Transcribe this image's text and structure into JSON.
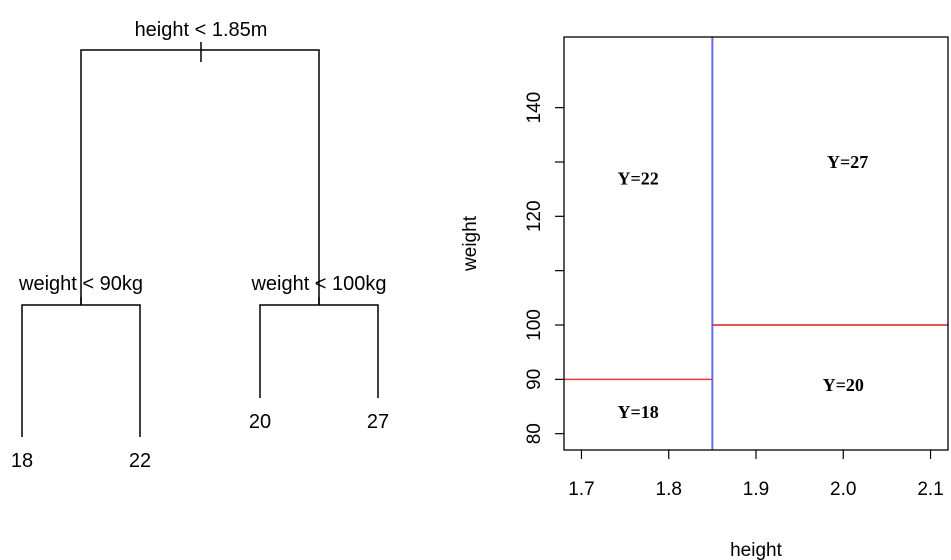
{
  "chart_data": [
    {
      "type": "tree",
      "root": {
        "split": "height < 1.85m",
        "left": {
          "split": "weight < 90kg",
          "left": {
            "leaf": "18"
          },
          "right": {
            "leaf": "22"
          }
        },
        "right": {
          "split": "weight < 100kg",
          "left": {
            "leaf": "20"
          },
          "right": {
            "leaf": "27"
          }
        }
      }
    },
    {
      "type": "partition",
      "xlabel": "height",
      "ylabel": "weight",
      "xlim": [
        1.68,
        2.12
      ],
      "ylim": [
        77,
        153
      ],
      "xticks": [
        "1.7",
        "1.8",
        "1.9",
        "2.0",
        "2.1"
      ],
      "xtick_values": [
        1.7,
        1.8,
        1.9,
        2.0,
        2.1
      ],
      "yticks": [
        "80",
        "90",
        "100",
        "120",
        "140"
      ],
      "ytick_values": [
        80,
        90,
        100,
        120,
        140
      ],
      "ytick_minor_values": [
        110,
        130
      ],
      "splits": [
        {
          "orientation": "vertical",
          "x": 1.85,
          "color": "#6b6bf0"
        },
        {
          "orientation": "horizontal",
          "y": 90,
          "x_from": 1.68,
          "x_to": 1.85,
          "color": "#e43a3a"
        },
        {
          "orientation": "horizontal",
          "y": 100,
          "x_from": 1.85,
          "x_to": 2.12,
          "color": "#d81e1e"
        }
      ],
      "regions": [
        {
          "label": "Y=22",
          "x": 1.765,
          "y": 127
        },
        {
          "label": "Y=27",
          "x": 2.005,
          "y": 130
        },
        {
          "label": "Y=18",
          "x": 1.765,
          "y": 84
        },
        {
          "label": "Y=20",
          "x": 2.0,
          "y": 89
        }
      ]
    }
  ]
}
